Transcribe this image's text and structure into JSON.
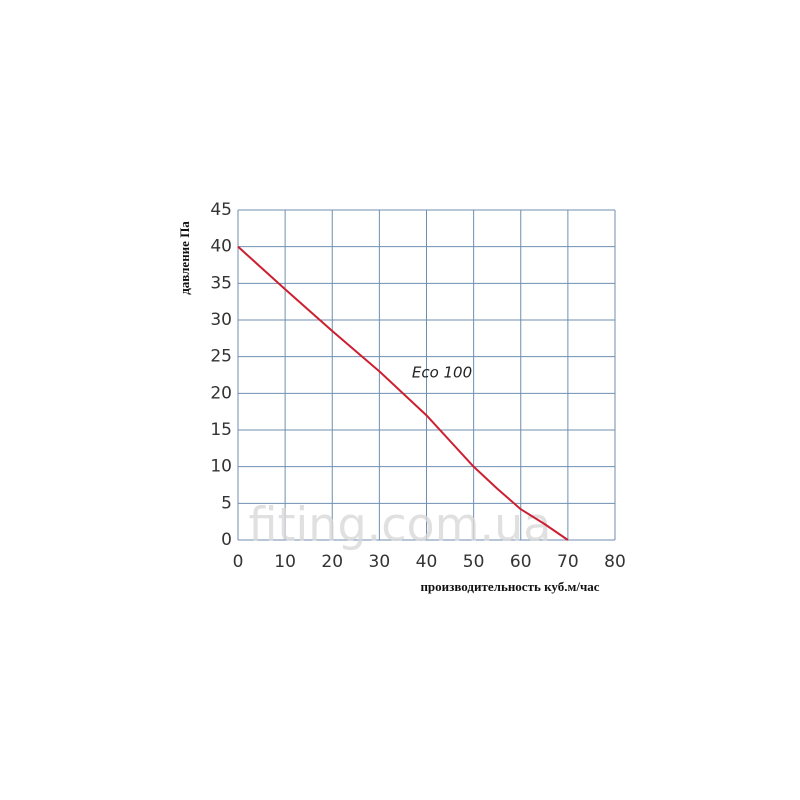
{
  "chart_data": {
    "type": "line",
    "x_label": "производительность куб.м/час",
    "y_label": "давление Па",
    "annotation": "Eco 100",
    "watermark": "fiting.com.ua",
    "x": [
      0,
      10,
      20,
      30,
      35,
      40,
      45,
      50,
      55,
      60,
      65,
      70
    ],
    "series": [
      {
        "name": "Eco 100",
        "color": "#cc2030",
        "values": [
          40,
          34.2,
          28.5,
          23,
          20,
          17,
          13.5,
          10,
          7,
          4.2,
          2.2,
          0
        ]
      }
    ],
    "xlim": [
      0,
      80
    ],
    "xticks": [
      0,
      10,
      20,
      30,
      40,
      50,
      60,
      70,
      80
    ],
    "ylim": [
      0,
      45
    ],
    "yticks": [
      0,
      5,
      10,
      15,
      20,
      25,
      30,
      35,
      40,
      45
    ],
    "grid": true,
    "grid_color": "#6f8fb2"
  }
}
